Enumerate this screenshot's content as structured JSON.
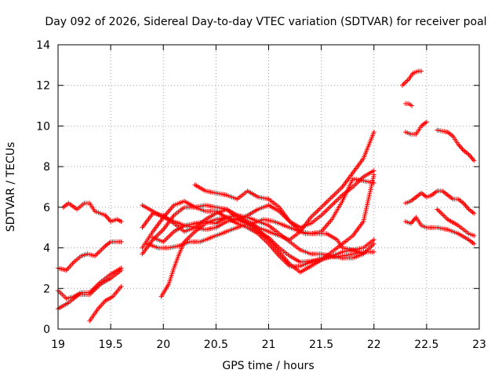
{
  "chart_data": {
    "type": "scatter",
    "title": "Day 092 of 2026, Sidereal Day-to-day VTEC variation (SDTVAR) for receiver poal",
    "xlabel": "GPS time / hours",
    "ylabel": "SDTVAR / TECUs",
    "xlim": [
      19,
      23
    ],
    "ylim": [
      0,
      14
    ],
    "xticks": [
      19,
      19.5,
      20,
      20.5,
      21,
      21.5,
      22,
      22.5,
      23
    ],
    "xtick_labels": [
      "19",
      "19.5",
      "20",
      "20.5",
      "21",
      "21.5",
      "22",
      "22.5",
      "23"
    ],
    "yticks": [
      0,
      2,
      4,
      6,
      8,
      10,
      12,
      14
    ],
    "ytick_labels": [
      "0",
      "2",
      "4",
      "6",
      "8",
      "10",
      "12",
      "14"
    ],
    "grid": true,
    "marker": "+",
    "color": "#ff0000",
    "series": [
      {
        "name": "s1",
        "points": [
          [
            19.0,
            3.0
          ],
          [
            19.08,
            2.9
          ],
          [
            19.15,
            3.3
          ],
          [
            19.22,
            3.6
          ],
          [
            19.28,
            3.7
          ],
          [
            19.35,
            3.6
          ],
          [
            19.45,
            4.1
          ],
          [
            19.5,
            4.3
          ],
          [
            19.6,
            4.3
          ]
        ]
      },
      {
        "name": "s2",
        "points": [
          [
            19.05,
            6.0
          ],
          [
            19.1,
            6.2
          ],
          [
            19.18,
            5.9
          ],
          [
            19.25,
            6.2
          ],
          [
            19.3,
            6.2
          ],
          [
            19.35,
            5.8
          ],
          [
            19.45,
            5.6
          ],
          [
            19.5,
            5.3
          ],
          [
            19.56,
            5.4
          ],
          [
            19.6,
            5.3
          ]
        ]
      },
      {
        "name": "s3",
        "points": [
          [
            19.0,
            1.0
          ],
          [
            19.1,
            1.3
          ],
          [
            19.2,
            1.7
          ],
          [
            19.3,
            1.7
          ],
          [
            19.4,
            2.2
          ],
          [
            19.5,
            2.5
          ],
          [
            19.6,
            2.9
          ]
        ]
      },
      {
        "name": "s4",
        "points": [
          [
            19.0,
            1.9
          ],
          [
            19.08,
            1.5
          ],
          [
            19.15,
            1.6
          ],
          [
            19.22,
            1.8
          ],
          [
            19.3,
            1.8
          ],
          [
            19.4,
            2.3
          ],
          [
            19.5,
            2.7
          ],
          [
            19.6,
            3.0
          ]
        ]
      },
      {
        "name": "s5",
        "points": [
          [
            19.3,
            0.4
          ],
          [
            19.38,
            1.0
          ],
          [
            19.45,
            1.4
          ],
          [
            19.52,
            1.6
          ],
          [
            19.6,
            2.1
          ]
        ]
      },
      {
        "name": "s6",
        "points": [
          [
            19.8,
            4.0
          ],
          [
            19.9,
            4.8
          ],
          [
            20.0,
            5.5
          ],
          [
            20.1,
            6.1
          ],
          [
            20.2,
            6.3
          ],
          [
            20.3,
            6.0
          ],
          [
            20.4,
            5.8
          ],
          [
            20.5,
            5.8
          ],
          [
            20.6,
            5.5
          ],
          [
            20.7,
            5.2
          ],
          [
            20.8,
            5.0
          ],
          [
            20.9,
            4.7
          ],
          [
            21.0,
            4.2
          ],
          [
            21.1,
            3.6
          ],
          [
            21.2,
            3.1
          ],
          [
            21.3,
            3.1
          ],
          [
            21.5,
            3.5
          ],
          [
            21.7,
            3.6
          ],
          [
            21.9,
            3.8
          ],
          [
            22.0,
            3.8
          ]
        ]
      },
      {
        "name": "s7",
        "points": [
          [
            19.8,
            5.0
          ],
          [
            19.9,
            5.7
          ],
          [
            20.0,
            5.6
          ],
          [
            20.1,
            5.2
          ],
          [
            20.2,
            4.8
          ],
          [
            20.3,
            5.0
          ],
          [
            20.4,
            5.4
          ],
          [
            20.5,
            5.7
          ],
          [
            20.6,
            5.9
          ],
          [
            20.7,
            5.5
          ],
          [
            20.8,
            5.2
          ],
          [
            20.9,
            4.8
          ],
          [
            21.0,
            4.5
          ],
          [
            21.1,
            4.0
          ],
          [
            21.2,
            3.6
          ],
          [
            21.3,
            3.3
          ],
          [
            21.5,
            3.4
          ],
          [
            21.7,
            3.8
          ],
          [
            21.9,
            4.0
          ],
          [
            22.0,
            4.4
          ]
        ]
      },
      {
        "name": "s8",
        "points": [
          [
            19.8,
            6.1
          ],
          [
            19.9,
            5.8
          ],
          [
            20.0,
            5.5
          ],
          [
            20.1,
            5.3
          ],
          [
            20.2,
            5.1
          ],
          [
            20.3,
            5.0
          ],
          [
            20.4,
            4.9
          ],
          [
            20.5,
            5.0
          ],
          [
            20.6,
            5.3
          ],
          [
            20.7,
            5.4
          ],
          [
            20.8,
            5.6
          ],
          [
            20.9,
            5.9
          ],
          [
            21.0,
            6.1
          ],
          [
            21.1,
            5.8
          ],
          [
            21.2,
            5.3
          ],
          [
            21.3,
            5.0
          ],
          [
            21.4,
            5.2
          ],
          [
            21.5,
            5.6
          ],
          [
            21.6,
            6.1
          ],
          [
            21.7,
            6.6
          ],
          [
            21.8,
            7.0
          ],
          [
            21.9,
            7.5
          ],
          [
            22.0,
            7.8
          ]
        ]
      },
      {
        "name": "s9",
        "points": [
          [
            19.8,
            3.7
          ],
          [
            19.9,
            4.4
          ],
          [
            20.0,
            4.9
          ],
          [
            20.1,
            5.6
          ],
          [
            20.2,
            6.0
          ],
          [
            20.3,
            6.0
          ],
          [
            20.4,
            6.1
          ],
          [
            20.5,
            6.0
          ],
          [
            20.6,
            5.9
          ],
          [
            20.7,
            5.6
          ],
          [
            20.8,
            5.3
          ],
          [
            20.9,
            5.0
          ],
          [
            21.0,
            4.8
          ],
          [
            21.1,
            4.6
          ],
          [
            21.2,
            4.4
          ],
          [
            21.3,
            4.8
          ],
          [
            21.4,
            5.5
          ],
          [
            21.5,
            6.0
          ],
          [
            21.6,
            6.5
          ],
          [
            21.7,
            7.0
          ],
          [
            21.8,
            7.7
          ],
          [
            21.9,
            8.4
          ],
          [
            22.0,
            9.7
          ]
        ]
      },
      {
        "name": "s10",
        "points": [
          [
            19.85,
            4.2
          ],
          [
            19.95,
            4.0
          ],
          [
            20.05,
            4.0
          ],
          [
            20.15,
            4.1
          ],
          [
            20.25,
            4.3
          ],
          [
            20.35,
            4.3
          ],
          [
            20.45,
            4.5
          ],
          [
            20.55,
            4.7
          ],
          [
            20.65,
            4.9
          ],
          [
            20.75,
            5.1
          ],
          [
            20.85,
            5.2
          ],
          [
            20.95,
            5.4
          ],
          [
            21.05,
            5.3
          ],
          [
            21.15,
            5.1
          ],
          [
            21.25,
            4.9
          ],
          [
            21.35,
            4.7
          ],
          [
            21.45,
            4.7
          ],
          [
            21.55,
            4.7
          ],
          [
            21.65,
            4.4
          ],
          [
            21.7,
            4.0
          ],
          [
            21.8,
            3.9
          ],
          [
            21.9,
            3.7
          ]
        ]
      },
      {
        "name": "s11",
        "points": [
          [
            19.9,
            4.5
          ],
          [
            20.0,
            4.3
          ],
          [
            20.1,
            4.8
          ],
          [
            20.2,
            5.1
          ],
          [
            20.3,
            5.2
          ],
          [
            20.4,
            5.3
          ],
          [
            20.5,
            5.2
          ],
          [
            20.6,
            5.5
          ],
          [
            20.7,
            5.4
          ],
          [
            20.8,
            5.2
          ],
          [
            20.9,
            4.9
          ],
          [
            21.0,
            4.4
          ],
          [
            21.1,
            3.8
          ],
          [
            21.2,
            3.2
          ],
          [
            21.3,
            2.8
          ],
          [
            21.4,
            3.1
          ],
          [
            21.5,
            3.4
          ],
          [
            21.6,
            3.8
          ],
          [
            21.7,
            4.2
          ],
          [
            21.8,
            4.6
          ],
          [
            21.9,
            5.3
          ],
          [
            22.0,
            7.6
          ]
        ]
      },
      {
        "name": "s12",
        "points": [
          [
            19.98,
            1.6
          ],
          [
            20.05,
            2.2
          ],
          [
            20.1,
            3.0
          ],
          [
            20.15,
            3.7
          ],
          [
            20.2,
            4.3
          ],
          [
            20.3,
            4.8
          ],
          [
            20.4,
            5.2
          ],
          [
            20.5,
            5.4
          ],
          [
            20.6,
            5.5
          ],
          [
            20.7,
            5.6
          ],
          [
            20.8,
            5.5
          ],
          [
            20.9,
            5.3
          ],
          [
            21.0,
            5.1
          ],
          [
            21.1,
            4.7
          ],
          [
            21.2,
            4.3
          ],
          [
            21.3,
            3.9
          ],
          [
            21.4,
            3.7
          ],
          [
            21.5,
            3.7
          ],
          [
            21.6,
            3.6
          ],
          [
            21.7,
            3.5
          ],
          [
            21.8,
            3.5
          ],
          [
            21.9,
            3.7
          ],
          [
            22.0,
            4.2
          ]
        ]
      },
      {
        "name": "s13",
        "points": [
          [
            20.3,
            7.1
          ],
          [
            20.4,
            6.8
          ],
          [
            20.5,
            6.7
          ],
          [
            20.6,
            6.6
          ],
          [
            20.7,
            6.4
          ],
          [
            20.8,
            6.8
          ],
          [
            20.9,
            6.5
          ],
          [
            21.0,
            6.4
          ],
          [
            21.1,
            6.0
          ],
          [
            21.2,
            5.3
          ],
          [
            21.3,
            4.8
          ],
          [
            21.4,
            4.7
          ],
          [
            21.5,
            4.8
          ],
          [
            21.6,
            5.4
          ],
          [
            21.7,
            6.3
          ],
          [
            21.8,
            7.4
          ],
          [
            21.9,
            7.3
          ],
          [
            22.0,
            7.2
          ]
        ]
      },
      {
        "name": "s14",
        "points": [
          [
            22.27,
            12.0
          ],
          [
            22.33,
            12.3
          ],
          [
            22.37,
            12.6
          ],
          [
            22.42,
            12.7
          ],
          [
            22.45,
            12.7
          ]
        ]
      },
      {
        "name": "s15",
        "points": [
          [
            22.3,
            11.1
          ],
          [
            22.33,
            11.1
          ],
          [
            22.36,
            11.0
          ]
        ]
      },
      {
        "name": "s16",
        "points": [
          [
            22.3,
            9.7
          ],
          [
            22.35,
            9.6
          ],
          [
            22.4,
            9.6
          ],
          [
            22.45,
            10.0
          ],
          [
            22.5,
            10.2
          ]
        ]
      },
      {
        "name": "s17",
        "points": [
          [
            22.6,
            9.8
          ],
          [
            22.7,
            9.7
          ],
          [
            22.75,
            9.5
          ],
          [
            22.8,
            9.1
          ],
          [
            22.85,
            8.8
          ],
          [
            22.9,
            8.6
          ],
          [
            22.95,
            8.3
          ]
        ]
      },
      {
        "name": "s18",
        "points": [
          [
            22.3,
            6.2
          ],
          [
            22.35,
            6.3
          ],
          [
            22.4,
            6.5
          ],
          [
            22.45,
            6.7
          ],
          [
            22.5,
            6.5
          ],
          [
            22.55,
            6.6
          ],
          [
            22.6,
            6.8
          ],
          [
            22.65,
            6.8
          ],
          [
            22.7,
            6.6
          ],
          [
            22.75,
            6.4
          ],
          [
            22.8,
            6.4
          ],
          [
            22.85,
            6.2
          ],
          [
            22.9,
            5.9
          ],
          [
            22.95,
            5.7
          ]
        ]
      },
      {
        "name": "s19",
        "points": [
          [
            22.3,
            5.3
          ],
          [
            22.35,
            5.2
          ],
          [
            22.4,
            5.5
          ],
          [
            22.45,
            5.1
          ],
          [
            22.5,
            5.0
          ],
          [
            22.6,
            5.0
          ],
          [
            22.7,
            4.9
          ],
          [
            22.8,
            4.7
          ],
          [
            22.9,
            4.4
          ],
          [
            22.95,
            4.2
          ]
        ]
      },
      {
        "name": "s20",
        "points": [
          [
            22.6,
            5.9
          ],
          [
            22.7,
            5.4
          ],
          [
            22.8,
            5.1
          ],
          [
            22.9,
            4.7
          ],
          [
            22.95,
            4.6
          ]
        ]
      }
    ]
  }
}
